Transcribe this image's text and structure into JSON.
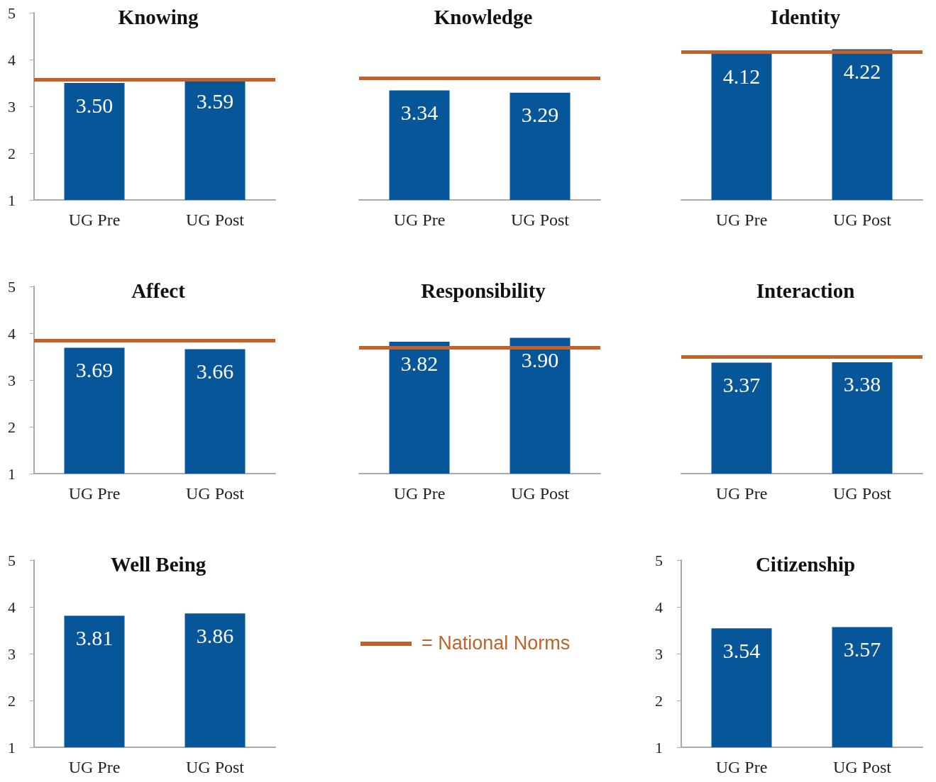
{
  "chart_data": [
    {
      "type": "bar",
      "title": "Knowing",
      "categories": [
        "UG Pre",
        "UG Post"
      ],
      "values": [
        3.5,
        3.59
      ],
      "value_labels": [
        "3.50",
        "3.59"
      ],
      "color": "#07569a",
      "ylim": [
        1,
        5
      ],
      "yticks": [
        1,
        2,
        3,
        4,
        5
      ],
      "ref_lines": [
        {
          "axis": "y",
          "value": 3.57,
          "color": "#c0622a"
        }
      ]
    },
    {
      "type": "bar",
      "title": "Knowledge",
      "categories": [
        "UG Pre",
        "UG Post"
      ],
      "values": [
        3.34,
        3.29
      ],
      "value_labels": [
        "3.34",
        "3.29"
      ],
      "color": "#07569a",
      "ylim": [
        1,
        5
      ],
      "tick_labels": "x",
      "ref_lines": [
        {
          "axis": "y",
          "value": 3.6,
          "color": "#c0622a"
        }
      ]
    },
    {
      "type": "bar",
      "title": "Identity",
      "categories": [
        "UG Pre",
        "UG Post"
      ],
      "values": [
        4.12,
        4.22
      ],
      "value_labels": [
        "4.12",
        "4.22"
      ],
      "color": "#07569a",
      "ylim": [
        1,
        5
      ],
      "tick_labels": "x",
      "ref_lines": [
        {
          "axis": "y",
          "value": 4.17,
          "color": "#c0622a"
        }
      ]
    },
    {
      "type": "bar",
      "title": "Affect",
      "categories": [
        "UG Pre",
        "UG Post"
      ],
      "values": [
        3.69,
        3.66
      ],
      "value_labels": [
        "3.69",
        "3.66"
      ],
      "color": "#07569a",
      "ylim": [
        1,
        5
      ],
      "yticks": [
        1,
        2,
        3,
        4,
        5
      ],
      "ref_lines": [
        {
          "axis": "y",
          "value": 3.85,
          "color": "#c0622a"
        }
      ]
    },
    {
      "type": "bar",
      "title": "Responsibility",
      "categories": [
        "UG Pre",
        "UG Post"
      ],
      "values": [
        3.82,
        3.9
      ],
      "value_labels": [
        "3.82",
        "3.90"
      ],
      "color": "#07569a",
      "ylim": [
        1,
        5
      ],
      "tick_labels": "x",
      "ref_lines": [
        {
          "axis": "y",
          "value": 3.7,
          "color": "#c0622a"
        }
      ]
    },
    {
      "type": "bar",
      "title": "Interaction",
      "categories": [
        "UG Pre",
        "UG Post"
      ],
      "values": [
        3.37,
        3.38
      ],
      "value_labels": [
        "3.37",
        "3.38"
      ],
      "color": "#07569a",
      "ylim": [
        1,
        5
      ],
      "tick_labels": "x",
      "ref_lines": [
        {
          "axis": "y",
          "value": 3.5,
          "color": "#c0622a"
        }
      ]
    },
    {
      "type": "bar",
      "title": "Well Being",
      "categories": [
        "UG Pre",
        "UG Post"
      ],
      "values": [
        3.81,
        3.86
      ],
      "value_labels": [
        "3.81",
        "3.86"
      ],
      "color": "#07569a",
      "ylim": [
        1,
        5
      ],
      "yticks": [
        1,
        2,
        3,
        4,
        5
      ]
    },
    {
      "type": "other",
      "annotations": [
        "= National Norms"
      ],
      "color": "#c0622a"
    },
    {
      "type": "bar",
      "title": "Citizenship",
      "categories": [
        "UG Pre",
        "UG Post"
      ],
      "values": [
        3.54,
        3.57
      ],
      "value_labels": [
        "3.54",
        "3.57"
      ],
      "color": "#07569a",
      "ylim": [
        1,
        5
      ],
      "yticks": [
        1,
        2,
        3,
        4,
        5
      ]
    }
  ]
}
